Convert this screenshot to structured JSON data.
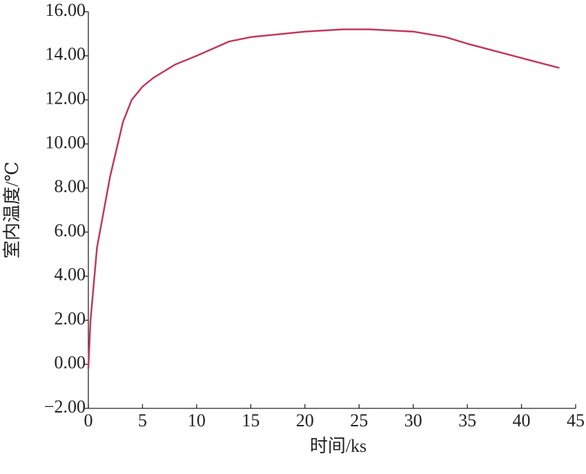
{
  "chart_data": {
    "type": "line",
    "x_label": "时间/ks",
    "y_label": "室内温度/℃",
    "series": [
      {
        "color": "#c0395a",
        "x": [
          0,
          0.2,
          0.8,
          2,
          3.2,
          4,
          5,
          6,
          8,
          10,
          13,
          15,
          20,
          23.5,
          26,
          30,
          33,
          35,
          40,
          43.5
        ],
        "values": [
          -0.2,
          2,
          5.3,
          8.5,
          11.0,
          12.0,
          12.6,
          13.0,
          13.6,
          14.0,
          14.65,
          14.85,
          15.1,
          15.2,
          15.2,
          15.1,
          14.85,
          14.55,
          13.9,
          13.45
        ]
      }
    ],
    "xlim": [
      0,
      45
    ],
    "xticks": [
      0,
      5,
      10,
      15,
      20,
      25,
      30,
      35,
      40,
      45
    ],
    "ylim": [
      -2,
      16
    ],
    "yticks": [
      {
        "value": -2,
        "label": "−2.00"
      },
      {
        "value": 0,
        "label": "0.00"
      },
      {
        "value": 2,
        "label": "2.00"
      },
      {
        "value": 4,
        "label": "4.00"
      },
      {
        "value": 6,
        "label": "6.00"
      },
      {
        "value": 8,
        "label": "8.00"
      },
      {
        "value": 10,
        "label": "10.00"
      },
      {
        "value": 12,
        "label": "12.00"
      },
      {
        "value": 14,
        "label": "14.00"
      },
      {
        "value": 16,
        "label": "16.00"
      }
    ]
  }
}
